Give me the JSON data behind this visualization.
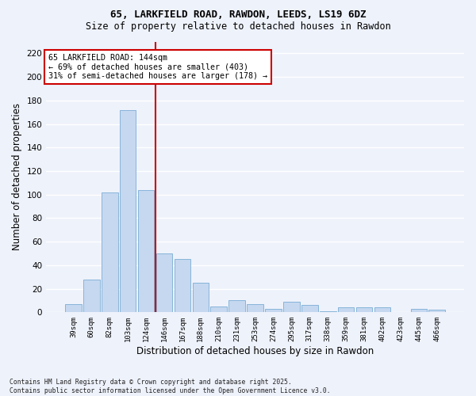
{
  "title1": "65, LARKFIELD ROAD, RAWDON, LEEDS, LS19 6DZ",
  "title2": "Size of property relative to detached houses in Rawdon",
  "xlabel": "Distribution of detached houses by size in Rawdon",
  "ylabel": "Number of detached properties",
  "categories": [
    "39sqm",
    "60sqm",
    "82sqm",
    "103sqm",
    "124sqm",
    "146sqm",
    "167sqm",
    "188sqm",
    "210sqm",
    "231sqm",
    "253sqm",
    "274sqm",
    "295sqm",
    "317sqm",
    "338sqm",
    "359sqm",
    "381sqm",
    "402sqm",
    "423sqm",
    "445sqm",
    "466sqm"
  ],
  "values": [
    7,
    28,
    102,
    172,
    104,
    50,
    45,
    25,
    5,
    10,
    7,
    3,
    9,
    6,
    1,
    4,
    4,
    4,
    0,
    3,
    2
  ],
  "bar_color": "#c5d8f0",
  "bar_edge_color": "#7aadd4",
  "red_line_index": 5,
  "red_line_label": "65 LARKFIELD ROAD: 144sqm",
  "annotation_line2": "← 69% of detached houses are smaller (403)",
  "annotation_line3": "31% of semi-detached houses are larger (178) →",
  "ylim": [
    0,
    230
  ],
  "yticks": [
    0,
    20,
    40,
    60,
    80,
    100,
    120,
    140,
    160,
    180,
    200,
    220
  ],
  "footer": "Contains HM Land Registry data © Crown copyright and database right 2025.\nContains public sector information licensed under the Open Government Licence v3.0.",
  "bg_color": "#eef2fb",
  "grid_color": "#ffffff",
  "annotation_box_color": "#ffffff",
  "annotation_box_edge": "#cc0000",
  "red_line_color": "#cc0000",
  "title1_fontsize": 9,
  "title2_fontsize": 8.5
}
